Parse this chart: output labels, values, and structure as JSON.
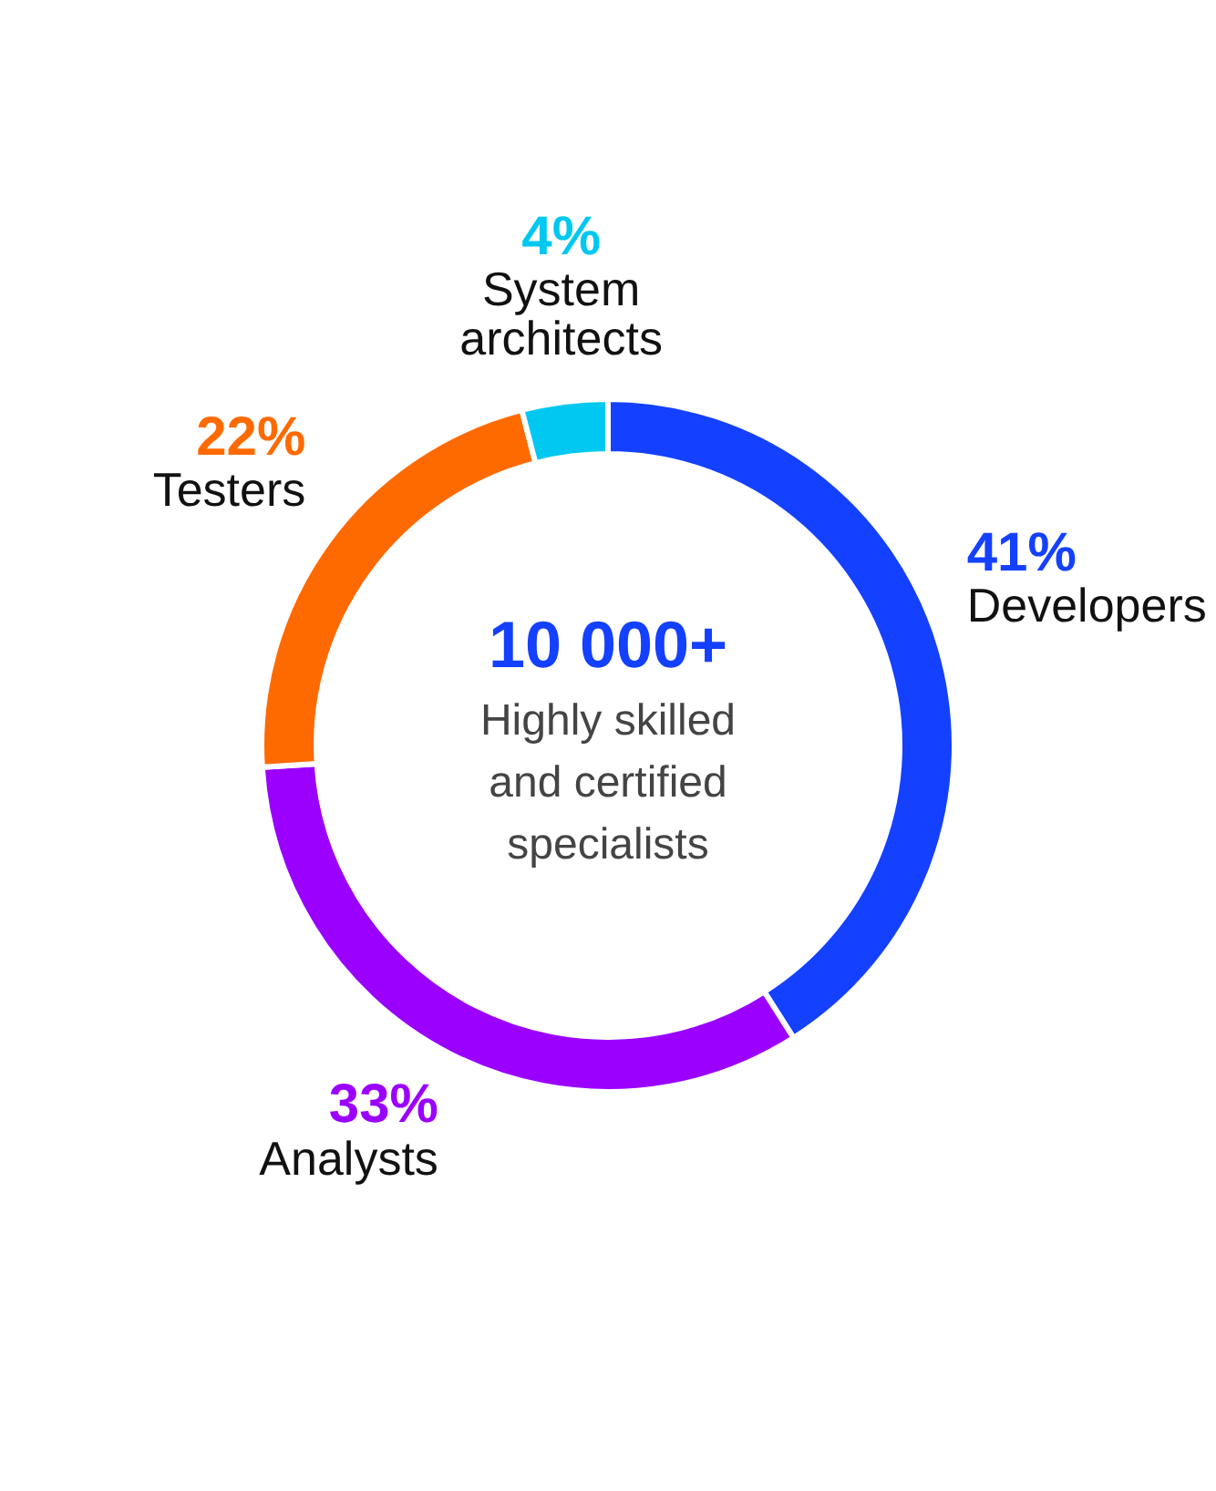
{
  "chart_data": {
    "type": "donut",
    "categories": [
      "Developers",
      "Analysts",
      "Testers",
      "System architects"
    ],
    "values": [
      41,
      33,
      22,
      4
    ],
    "colors": [
      "#1440ff",
      "#9b00ff",
      "#ff6a00",
      "#00c8f0"
    ],
    "value_labels": [
      "41%",
      "33%",
      "22%",
      "4%"
    ],
    "annotations": [
      "10 000+",
      "Highly skilled and certified specialists"
    ]
  }
}
